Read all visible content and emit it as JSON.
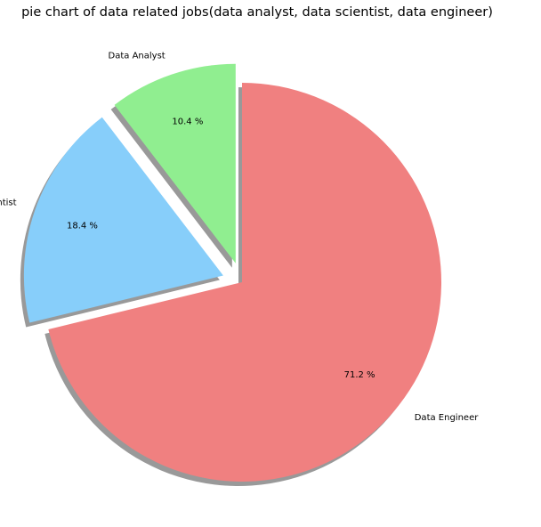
{
  "chart_data": {
    "type": "pie",
    "title": "pie chart of data related jobs(data analyst, data scientist, data engineer)",
    "slices": [
      {
        "label": "Data Analyst",
        "value": 10.4,
        "pct_label": "10.4 %",
        "color": "#90ee90",
        "exploded": true
      },
      {
        "label": "Data Scientist",
        "value": 18.4,
        "pct_label": "18.4 %",
        "color": "#87cefa",
        "exploded": true
      },
      {
        "label": "Data Engineer",
        "value": 71.2,
        "pct_label": "71.2 %",
        "color": "#f08080",
        "exploded": false
      }
    ],
    "shadow": true,
    "legend": "none",
    "start_angle_deg": 90,
    "direction": "counterclockwise"
  }
}
